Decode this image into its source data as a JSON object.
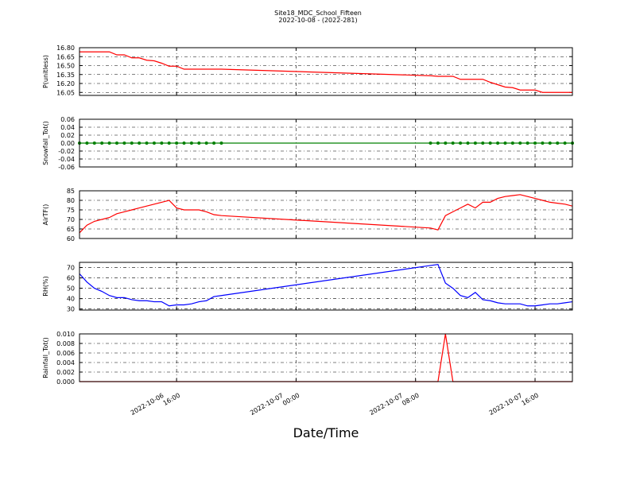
{
  "chart_data": [
    {
      "type": "line",
      "title": "Site18_MDC_School_Fifteen",
      "subtitle": "2022-10-08 - (2022-281)",
      "ylabel": "P(unitless)",
      "x": [
        "2022-10-06 09:30",
        "2022-10-06 10:00",
        "2022-10-06 10:30",
        "2022-10-06 11:00",
        "2022-10-06 11:30",
        "2022-10-06 12:00",
        "2022-10-06 12:30",
        "2022-10-06 13:00",
        "2022-10-06 13:30",
        "2022-10-06 14:00",
        "2022-10-06 14:30",
        "2022-10-06 15:00",
        "2022-10-06 15:30",
        "2022-10-06 16:00",
        "2022-10-06 16:30",
        "2022-10-06 17:00",
        "2022-10-06 17:30",
        "2022-10-06 18:00",
        "2022-10-06 18:30",
        "2022-10-06 19:00",
        "2022-10-07 09:00",
        "2022-10-07 09:30",
        "2022-10-07 10:00",
        "2022-10-07 10:30",
        "2022-10-07 11:00",
        "2022-10-07 11:30",
        "2022-10-07 12:00",
        "2022-10-07 12:30",
        "2022-10-07 13:00",
        "2022-10-07 13:30",
        "2022-10-07 14:00",
        "2022-10-07 14:30",
        "2022-10-07 15:00",
        "2022-10-07 15:30",
        "2022-10-07 16:00",
        "2022-10-07 16:30",
        "2022-10-07 17:00",
        "2022-10-07 17:30",
        "2022-10-07 18:00",
        "2022-10-07 18:30"
      ],
      "xlim": [
        "2022-10-06 09:30",
        "2022-10-07 18:30"
      ],
      "ylim": [
        16.0,
        16.8
      ],
      "yticks": [
        16.05,
        {
          "value": 16.2,
          "label": "16.20"
        },
        16.35,
        {
          "value": 16.5,
          "label": "16.50"
        },
        16.65,
        {
          "value": 16.8,
          "label": "16.80"
        }
      ],
      "grid": true,
      "series": [
        {
          "color": "#ff0000",
          "values": [
            16.73,
            16.73,
            16.73,
            16.73,
            16.73,
            16.68,
            16.68,
            16.63,
            16.63,
            16.59,
            16.58,
            16.54,
            16.49,
            16.49,
            16.44,
            16.44,
            16.44,
            16.44,
            16.44,
            16.44,
            16.33,
            16.32,
            16.32,
            16.32,
            16.27,
            16.27,
            16.27,
            16.27,
            16.22,
            16.18,
            16.14,
            16.13,
            16.09,
            16.09,
            16.09,
            16.05,
            16.05,
            16.05,
            16.05,
            16.05
          ]
        }
      ]
    },
    {
      "type": "line",
      "ylabel": "Snowfall_Tot()",
      "x": [
        "2022-10-06 09:30",
        "2022-10-06 10:00",
        "2022-10-06 10:30",
        "2022-10-06 11:00",
        "2022-10-06 11:30",
        "2022-10-06 12:00",
        "2022-10-06 12:30",
        "2022-10-06 13:00",
        "2022-10-06 13:30",
        "2022-10-06 14:00",
        "2022-10-06 14:30",
        "2022-10-06 15:00",
        "2022-10-06 15:30",
        "2022-10-06 16:00",
        "2022-10-06 16:30",
        "2022-10-06 17:00",
        "2022-10-06 17:30",
        "2022-10-06 18:00",
        "2022-10-06 18:30",
        "2022-10-06 19:00",
        "2022-10-07 09:00",
        "2022-10-07 09:30",
        "2022-10-07 10:00",
        "2022-10-07 10:30",
        "2022-10-07 11:00",
        "2022-10-07 11:30",
        "2022-10-07 12:00",
        "2022-10-07 12:30",
        "2022-10-07 13:00",
        "2022-10-07 13:30",
        "2022-10-07 14:00",
        "2022-10-07 14:30",
        "2022-10-07 15:00",
        "2022-10-07 15:30",
        "2022-10-07 16:00",
        "2022-10-07 16:30",
        "2022-10-07 17:00",
        "2022-10-07 17:30",
        "2022-10-07 18:00",
        "2022-10-07 18:30"
      ],
      "xlim": [
        "2022-10-06 09:30",
        "2022-10-07 18:30"
      ],
      "ylim": [
        -0.06,
        0.06
      ],
      "yticks": [
        -0.06,
        -0.04,
        -0.02,
        {
          "value": 0,
          "label": "0.00"
        },
        0.02,
        0.04,
        0.06
      ],
      "grid": true,
      "series": [
        {
          "color": "#008000",
          "marker": "o",
          "values": [
            0,
            0,
            0,
            0,
            0,
            0,
            0,
            0,
            0,
            0,
            0,
            0,
            0,
            0,
            0,
            0,
            0,
            0,
            0,
            0,
            0,
            0,
            0,
            0,
            0,
            0,
            0,
            0,
            0,
            0,
            0,
            0,
            0,
            0,
            0,
            0,
            0,
            0,
            0,
            0
          ]
        }
      ]
    },
    {
      "type": "line",
      "ylabel": "AirTF()",
      "x": [
        "2022-10-06 09:30",
        "2022-10-06 10:00",
        "2022-10-06 10:30",
        "2022-10-06 11:00",
        "2022-10-06 11:30",
        "2022-10-06 12:00",
        "2022-10-06 12:30",
        "2022-10-06 13:00",
        "2022-10-06 13:30",
        "2022-10-06 14:00",
        "2022-10-06 14:30",
        "2022-10-06 15:00",
        "2022-10-06 15:30",
        "2022-10-06 16:00",
        "2022-10-06 16:30",
        "2022-10-06 17:00",
        "2022-10-06 17:30",
        "2022-10-06 18:00",
        "2022-10-06 18:30",
        "2022-10-06 19:00",
        "2022-10-07 09:00",
        "2022-10-07 09:30",
        "2022-10-07 10:00",
        "2022-10-07 10:30",
        "2022-10-07 11:00",
        "2022-10-07 11:30",
        "2022-10-07 12:00",
        "2022-10-07 12:30",
        "2022-10-07 13:00",
        "2022-10-07 13:30",
        "2022-10-07 14:00",
        "2022-10-07 14:30",
        "2022-10-07 15:00",
        "2022-10-07 15:30",
        "2022-10-07 16:00",
        "2022-10-07 16:30",
        "2022-10-07 17:00",
        "2022-10-07 17:30",
        "2022-10-07 18:00",
        "2022-10-07 18:30"
      ],
      "xlim": [
        "2022-10-06 09:30",
        "2022-10-07 18:30"
      ],
      "ylim": [
        60,
        85
      ],
      "yticks": [
        60,
        65,
        70,
        75,
        80,
        85
      ],
      "grid": true,
      "series": [
        {
          "color": "#ff0000",
          "values": [
            63,
            67,
            69,
            70,
            71,
            73,
            74,
            75,
            76,
            77,
            78,
            79,
            80,
            76,
            75,
            75,
            75,
            74,
            72.5,
            72,
            65.5,
            64.5,
            72,
            74,
            76,
            78,
            76,
            79,
            79,
            81,
            82,
            82.5,
            83,
            82,
            81,
            80,
            79,
            78.5,
            78,
            77
          ]
        }
      ]
    },
    {
      "type": "line",
      "ylabel": "RH(%)",
      "x": [
        "2022-10-06 09:30",
        "2022-10-06 10:00",
        "2022-10-06 10:30",
        "2022-10-06 11:00",
        "2022-10-06 11:30",
        "2022-10-06 12:00",
        "2022-10-06 12:30",
        "2022-10-06 13:00",
        "2022-10-06 13:30",
        "2022-10-06 14:00",
        "2022-10-06 14:30",
        "2022-10-06 15:00",
        "2022-10-06 15:30",
        "2022-10-06 16:00",
        "2022-10-06 16:30",
        "2022-10-06 17:00",
        "2022-10-06 17:30",
        "2022-10-06 18:00",
        "2022-10-06 18:30",
        "2022-10-06 19:00",
        "2022-10-07 09:00",
        "2022-10-07 09:30",
        "2022-10-07 10:00",
        "2022-10-07 10:30",
        "2022-10-07 11:00",
        "2022-10-07 11:30",
        "2022-10-07 12:00",
        "2022-10-07 12:30",
        "2022-10-07 13:00",
        "2022-10-07 13:30",
        "2022-10-07 14:00",
        "2022-10-07 14:30",
        "2022-10-07 15:00",
        "2022-10-07 15:30",
        "2022-10-07 16:00",
        "2022-10-07 16:30",
        "2022-10-07 17:00",
        "2022-10-07 17:30",
        "2022-10-07 18:00",
        "2022-10-07 18:30"
      ],
      "xlim": [
        "2022-10-06 09:30",
        "2022-10-07 18:30"
      ],
      "ylim": [
        29,
        75
      ],
      "yticks": [
        30,
        40,
        50,
        60,
        70
      ],
      "grid": true,
      "series": [
        {
          "color": "#0000ff",
          "values": [
            64,
            56,
            50,
            47,
            43,
            41,
            41,
            39,
            38,
            38,
            37,
            37,
            33,
            34,
            34,
            35,
            37,
            38,
            42,
            43,
            72,
            73,
            55,
            50,
            43,
            41,
            46,
            39,
            38,
            36,
            35,
            35,
            35,
            33,
            33,
            34,
            35,
            35,
            36,
            37
          ]
        }
      ]
    },
    {
      "type": "line",
      "ylabel": "Rainfall_Tot()",
      "xlabel": "Date/Time",
      "x": [
        "2022-10-06 09:30",
        "2022-10-06 10:00",
        "2022-10-06 10:30",
        "2022-10-06 11:00",
        "2022-10-06 11:30",
        "2022-10-06 12:00",
        "2022-10-06 12:30",
        "2022-10-06 13:00",
        "2022-10-06 13:30",
        "2022-10-06 14:00",
        "2022-10-06 14:30",
        "2022-10-06 15:00",
        "2022-10-06 15:30",
        "2022-10-06 16:00",
        "2022-10-06 16:30",
        "2022-10-06 17:00",
        "2022-10-06 17:30",
        "2022-10-06 18:00",
        "2022-10-06 18:30",
        "2022-10-06 19:00",
        "2022-10-07 09:00",
        "2022-10-07 09:30",
        "2022-10-07 10:00",
        "2022-10-07 10:30",
        "2022-10-07 11:00",
        "2022-10-07 11:30",
        "2022-10-07 12:00",
        "2022-10-07 12:30",
        "2022-10-07 13:00",
        "2022-10-07 13:30",
        "2022-10-07 14:00",
        "2022-10-07 14:30",
        "2022-10-07 15:00",
        "2022-10-07 15:30",
        "2022-10-07 16:00",
        "2022-10-07 16:30",
        "2022-10-07 17:00",
        "2022-10-07 17:30",
        "2022-10-07 18:00",
        "2022-10-07 18:30"
      ],
      "xlim": [
        "2022-10-06 09:30",
        "2022-10-07 18:30"
      ],
      "ylim": [
        0,
        0.01
      ],
      "xticks": [
        "2022-10-06 16:00",
        "2022-10-07 00:00",
        "2022-10-07 08:00",
        "2022-10-07 16:00"
      ],
      "yticks": [
        {
          "value": 0,
          "label": "0.000"
        },
        0.002,
        0.004,
        0.006,
        0.008,
        {
          "value": 0.01,
          "label": "0.010"
        }
      ],
      "grid": true,
      "series": [
        {
          "color": "#ff0000",
          "values": [
            0,
            0,
            0,
            0,
            0,
            0,
            0,
            0,
            0,
            0,
            0,
            0,
            0,
            0,
            0,
            0,
            0,
            0,
            0,
            0,
            0,
            0,
            0.01,
            0,
            0,
            0,
            0,
            0,
            0,
            0,
            0,
            0,
            0,
            0,
            0,
            0,
            0,
            0,
            0,
            0
          ]
        }
      ]
    }
  ]
}
